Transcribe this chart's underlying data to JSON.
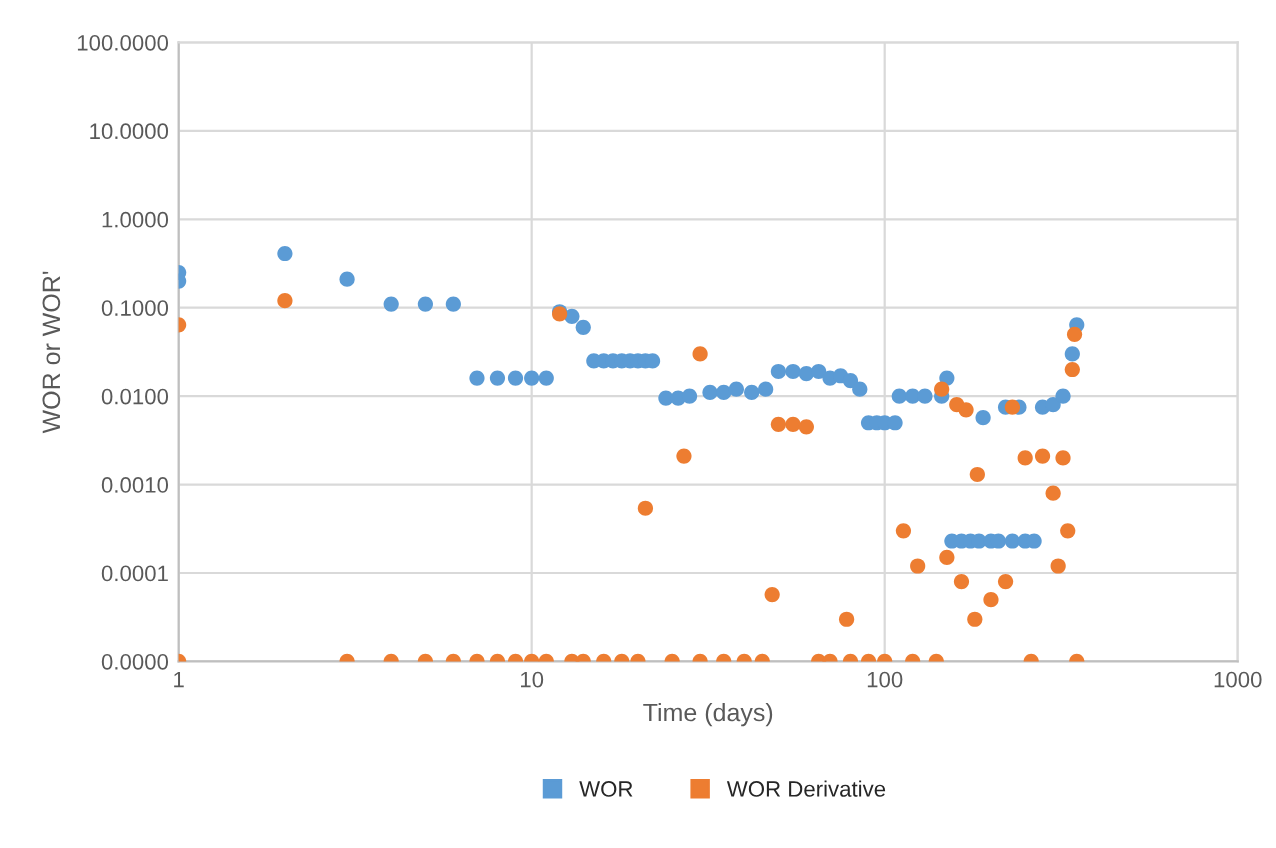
{
  "chart_data": {
    "type": "scatter",
    "xlabel": "Time (days)",
    "ylabel": "WOR or WOR'",
    "log": "xy",
    "grid": true,
    "legend": "bottom",
    "marker": "circle",
    "xlim": [
      1,
      1000
    ],
    "xticks": [
      1,
      10,
      100,
      1000
    ],
    "ylim": [
      1e-05,
      100
    ],
    "yticks": [
      {
        "value": 1e-05,
        "label": "0.0000"
      },
      {
        "value": 0.0001,
        "label": "0.0001"
      },
      {
        "value": 0.001,
        "label": "0.0010"
      },
      {
        "value": 0.01,
        "label": "0.0100"
      },
      {
        "value": 0.1,
        "label": "0.1000"
      },
      {
        "value": 1,
        "label": "1.0000"
      },
      {
        "value": 10,
        "label": "10.0000"
      },
      {
        "value": 100,
        "label": "100.0000"
      }
    ],
    "series": [
      {
        "name": "WOR",
        "color": "#5b9bd5",
        "x": [
          1,
          1,
          2,
          3,
          4,
          5,
          6,
          7,
          8,
          9,
          10,
          11,
          12,
          13,
          14,
          15,
          16,
          17,
          18,
          19,
          20,
          21,
          22,
          24,
          26,
          28,
          30,
          32,
          35,
          38,
          42,
          46,
          50,
          55,
          60,
          65,
          70,
          75,
          80,
          85,
          90,
          95,
          100,
          107,
          110,
          120,
          130,
          145,
          150,
          155,
          165,
          175,
          185,
          190,
          200,
          210,
          220,
          230,
          240,
          250,
          265,
          280,
          300,
          320,
          340,
          350
        ],
        "values": [
          0.25,
          0.2,
          0.41,
          0.21,
          0.11,
          0.11,
          0.11,
          0.016,
          0.016,
          0.016,
          0.016,
          0.016,
          0.09,
          0.08,
          0.06,
          0.025,
          0.025,
          0.025,
          0.025,
          0.025,
          0.025,
          0.025,
          0.025,
          0.0095,
          0.0095,
          0.01,
          null,
          0.011,
          0.011,
          0.012,
          0.011,
          0.012,
          0.019,
          0.019,
          0.018,
          0.019,
          0.016,
          0.017,
          0.015,
          0.012,
          0.005,
          0.005,
          0.005,
          0.005,
          0.01,
          0.01,
          0.01,
          0.01,
          0.016,
          0.00023,
          0.00023,
          0.00023,
          0.00023,
          0.0057,
          0.00023,
          0.00023,
          0.0075,
          0.00023,
          0.0075,
          0.00023,
          0.00023,
          0.0075,
          0.008,
          0.01,
          0.03,
          0.064
        ]
      },
      {
        "name": "WOR Derivative",
        "color": "#ed7d31",
        "x": [
          1,
          1,
          2,
          3,
          4,
          5,
          6,
          7,
          8,
          9,
          10,
          11,
          12,
          13,
          14,
          16,
          18,
          20,
          21,
          25,
          27,
          30,
          30,
          35,
          40,
          45,
          48,
          50,
          55,
          60,
          65,
          70,
          78,
          80,
          90,
          100,
          113,
          120,
          124,
          140,
          145,
          150,
          160,
          165,
          170,
          180,
          183,
          200,
          220,
          230,
          250,
          260,
          280,
          300,
          310,
          320,
          330,
          340,
          345,
          350
        ],
        "values": [
          0.064,
          1e-05,
          0.12,
          1e-05,
          1e-05,
          1e-05,
          1e-05,
          1e-05,
          1e-05,
          1e-05,
          1e-05,
          1e-05,
          0.085,
          1e-05,
          1e-05,
          1e-05,
          1e-05,
          1e-05,
          0.00054,
          1e-05,
          0.0021,
          0.03,
          1e-05,
          1e-05,
          1e-05,
          1e-05,
          5.7e-05,
          0.0048,
          0.0048,
          0.0045,
          1e-05,
          1e-05,
          3e-05,
          1e-05,
          1e-05,
          1e-05,
          0.0003,
          1e-05,
          0.00012,
          1e-05,
          0.012,
          0.00015,
          0.008,
          8e-05,
          0.007,
          3e-05,
          0.0013,
          5e-05,
          8e-05,
          0.0075,
          0.002,
          1e-05,
          0.0021,
          0.0008,
          0.00012,
          0.002,
          0.0003,
          0.02,
          0.05,
          1e-05
        ]
      }
    ]
  }
}
